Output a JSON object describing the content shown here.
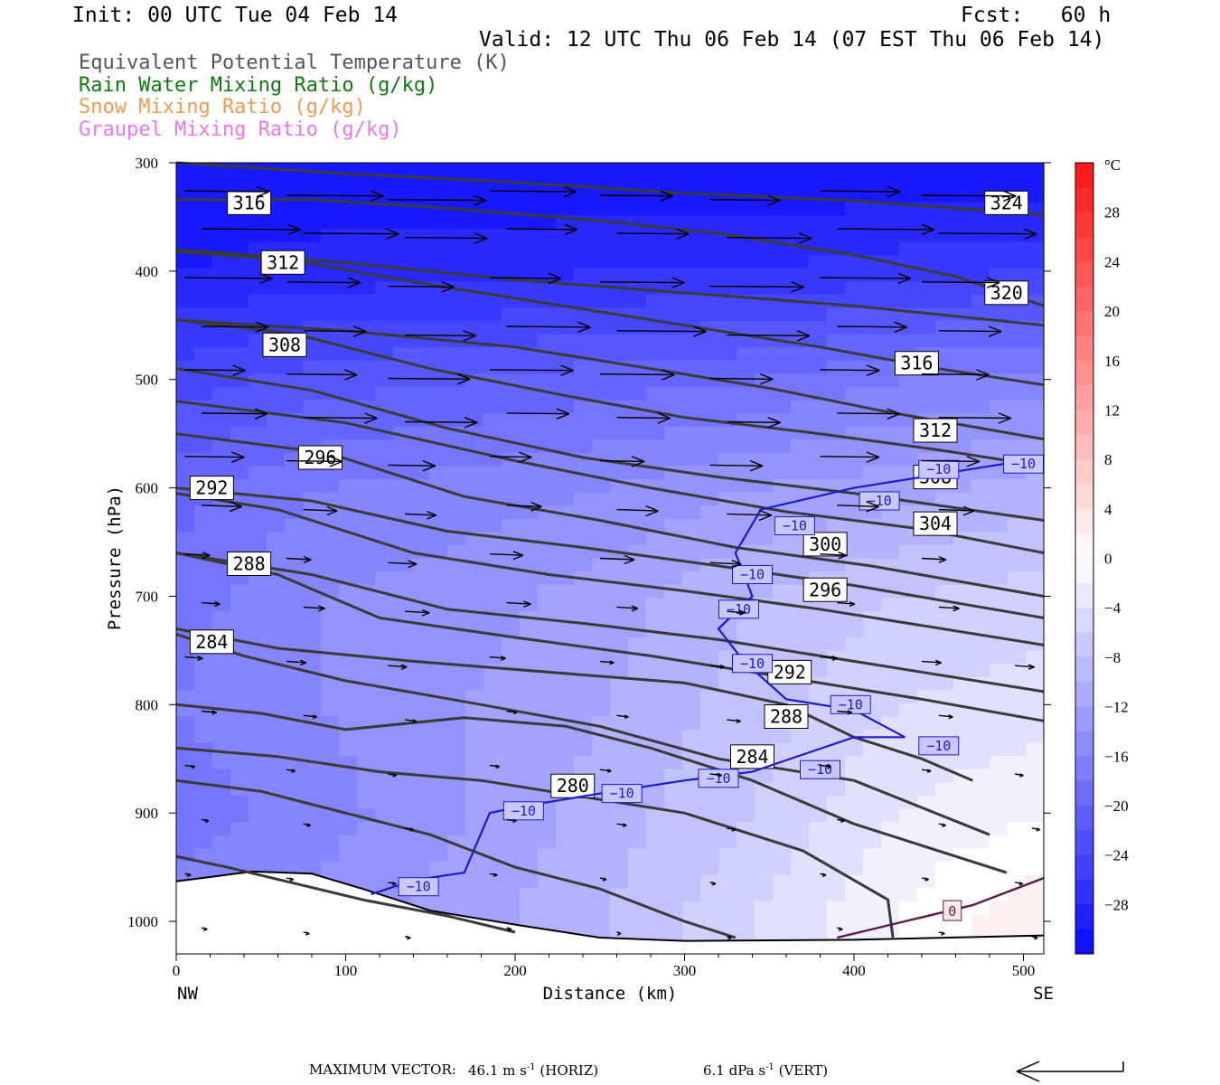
{
  "header": {
    "init": "Init: 00 UTC Tue 04 Feb 14",
    "fcst": "Fcst:   60 h",
    "valid": "Valid: 12 UTC Thu 06 Feb 14 (07 EST Thu 06 Feb 14)"
  },
  "legend": [
    {
      "label": "Equivalent Potential Temperature (K)",
      "color": "#555555"
    },
    {
      "label": "Rain Water Mixing Ratio (g/kg)",
      "color": "#127812"
    },
    {
      "label": "Snow Mixing Ratio (g/kg)",
      "color": "#f09a55"
    },
    {
      "label": "Graupel Mixing Ratio (g/kg)",
      "color": "#ee77ee"
    }
  ],
  "footer": {
    "label": "MAXIMUM VECTOR:",
    "horiz_value": "46.1 m s",
    "horiz_exp": "-1",
    "horiz_tag": "(HORIZ)",
    "vert_value": "6.1 dPa s",
    "vert_exp": "-1",
    "vert_tag": "(VERT)"
  },
  "chart_data": {
    "type": "cross-section",
    "xlabel": "Distance (km)",
    "ylabel": "Pressure (hPa)",
    "x_endpoints": [
      "NW",
      "SE"
    ],
    "xlim": [
      0,
      512
    ],
    "ylim": [
      1030,
      300
    ],
    "xticks": [
      0,
      100,
      200,
      300,
      400,
      500
    ],
    "yticks": [
      300,
      400,
      500,
      600,
      700,
      800,
      900,
      1000
    ],
    "colorbar": {
      "unit": "°C",
      "tick_labels": [
        "28",
        "24",
        "20",
        "16",
        "12",
        "8",
        "4",
        "0",
        "-4",
        "-8",
        "-12",
        "-16",
        "-20",
        "-24",
        "-28"
      ],
      "range": [
        -32,
        32
      ],
      "step": 2
    },
    "terrain_pressure": [
      {
        "x": 0,
        "p": 963
      },
      {
        "x": 25,
        "p": 958
      },
      {
        "x": 45,
        "p": 954
      },
      {
        "x": 80,
        "p": 956
      },
      {
        "x": 110,
        "p": 970
      },
      {
        "x": 150,
        "p": 990
      },
      {
        "x": 200,
        "p": 1003
      },
      {
        "x": 250,
        "p": 1015
      },
      {
        "x": 300,
        "p": 1018
      },
      {
        "x": 400,
        "p": 1017
      },
      {
        "x": 512,
        "p": 1013
      }
    ],
    "temperature_field": [
      {
        "p": 300,
        "t": [
          -31,
          -31,
          -31,
          -31,
          -31,
          -31,
          -31
        ]
      },
      {
        "p": 400,
        "t": [
          -29,
          -28,
          -28,
          -27,
          -27,
          -26,
          -25
        ]
      },
      {
        "p": 500,
        "t": [
          -24,
          -22,
          -21,
          -20,
          -19,
          -17,
          -16
        ]
      },
      {
        "p": 600,
        "t": [
          -20,
          -17,
          -16,
          -15,
          -13,
          -12,
          -10
        ]
      },
      {
        "p": 700,
        "t": [
          -18,
          -15,
          -14,
          -12,
          -9,
          -7,
          -6
        ]
      },
      {
        "p": 800,
        "t": [
          -17,
          -15,
          -13,
          -11,
          -8,
          -5,
          -4
        ]
      },
      {
        "p": 900,
        "t": [
          -18,
          -16,
          -13,
          -10,
          -7,
          -3,
          -1
        ]
      },
      {
        "p": 1000,
        "t": [
          -16,
          -14,
          -12,
          -9,
          -5,
          -1,
          3
        ]
      }
    ],
    "temperature_field_x": [
      0,
      85,
      170,
      255,
      340,
      425,
      512
    ],
    "theta_e_contours": [
      {
        "value": "324",
        "pts": [
          [
            0,
            300
          ],
          [
            100,
            310
          ],
          [
            200,
            318
          ],
          [
            300,
            328
          ],
          [
            400,
            335
          ],
          [
            512,
            348
          ]
        ],
        "label_at": [
          490,
          337
        ]
      },
      {
        "value": "316",
        "pts": [
          [
            0,
            334
          ],
          [
            80,
            334
          ],
          [
            160,
            342
          ],
          [
            240,
            352
          ],
          [
            320,
            365
          ],
          [
            400,
            385
          ],
          [
            460,
            405
          ],
          [
            512,
            432
          ]
        ],
        "label_at": [
          43,
          337
        ]
      },
      {
        "value": "320",
        "pts": [
          [
            0,
            380
          ],
          [
            100,
            392
          ],
          [
            200,
            408
          ],
          [
            300,
            420
          ],
          [
            400,
            432
          ],
          [
            512,
            450
          ]
        ],
        "label_at": [
          490,
          420
        ]
      },
      {
        "value": "312",
        "pts": [
          [
            0,
            382
          ],
          [
            70,
            390
          ],
          [
            140,
            410
          ],
          [
            220,
            430
          ],
          [
            300,
            450
          ],
          [
            380,
            470
          ],
          [
            450,
            490
          ],
          [
            512,
            505
          ]
        ],
        "label_at": [
          63,
          392
        ]
      },
      {
        "value": "316",
        "pts": [
          [
            0,
            445
          ],
          [
            100,
            455
          ],
          [
            200,
            470
          ],
          [
            280,
            490
          ],
          [
            350,
            508
          ],
          [
            420,
            530
          ],
          [
            512,
            555
          ]
        ],
        "label_at": [
          437,
          485
        ]
      },
      {
        "value": "308",
        "pts": [
          [
            0,
            445
          ],
          [
            70,
            458
          ],
          [
            150,
            490
          ],
          [
            230,
            515
          ],
          [
            300,
            535
          ],
          [
            380,
            550
          ],
          [
            450,
            565
          ],
          [
            512,
            580
          ]
        ],
        "label_at": [
          64,
          468
        ]
      },
      {
        "value": "312",
        "pts": [
          [
            0,
            490
          ],
          [
            80,
            510
          ],
          [
            160,
            545
          ],
          [
            240,
            572
          ],
          [
            320,
            590
          ],
          [
            400,
            605
          ],
          [
            512,
            630
          ]
        ],
        "label_at": [
          448,
          547
        ]
      },
      {
        "value": "308",
        "pts": [
          [
            0,
            520
          ],
          [
            100,
            540
          ],
          [
            200,
            575
          ],
          [
            280,
            600
          ],
          [
            360,
            622
          ],
          [
            440,
            638
          ],
          [
            512,
            660
          ]
        ],
        "label_at": [
          448,
          590
        ]
      },
      {
        "value": "296",
        "pts": [
          [
            0,
            550
          ],
          [
            90,
            568
          ],
          [
            170,
            608
          ],
          [
            250,
            630
          ],
          [
            330,
            655
          ],
          [
            410,
            672
          ],
          [
            512,
            700
          ]
        ],
        "label_at": [
          85,
          572
        ]
      },
      {
        "value": "304",
        "pts": [
          [
            0,
            600
          ],
          [
            80,
            612
          ],
          [
            160,
            640
          ],
          [
            240,
            655
          ],
          [
            320,
            672
          ],
          [
            400,
            690
          ],
          [
            512,
            720
          ]
        ],
        "label_at": [
          448,
          633
        ]
      },
      {
        "value": "292",
        "pts": [
          [
            0,
            605
          ],
          [
            60,
            620
          ],
          [
            140,
            660
          ],
          [
            220,
            680
          ],
          [
            300,
            695
          ],
          [
            380,
            712
          ],
          [
            512,
            745
          ]
        ],
        "label_at": [
          21,
          600
        ]
      },
      {
        "value": "300",
        "pts": [
          [
            0,
            660
          ],
          [
            80,
            680
          ],
          [
            160,
            712
          ],
          [
            240,
            725
          ],
          [
            320,
            740
          ],
          [
            400,
            760
          ],
          [
            512,
            788
          ]
        ],
        "label_at": [
          383,
          652
        ]
      },
      {
        "value": "288",
        "pts": [
          [
            0,
            660
          ],
          [
            60,
            680
          ],
          [
            120,
            720
          ],
          [
            200,
            738
          ],
          [
            280,
            755
          ],
          [
            360,
            775
          ],
          [
            440,
            795
          ],
          [
            512,
            815
          ]
        ],
        "label_at": [
          43,
          670
        ]
      },
      {
        "value": "296",
        "pts": [
          [
            0,
            730
          ],
          [
            60,
            748
          ],
          [
            140,
            760
          ],
          [
            220,
            770
          ],
          [
            300,
            780
          ],
          [
            360,
            800
          ],
          [
            400,
            830
          ],
          [
            440,
            850
          ],
          [
            470,
            870
          ]
        ],
        "label_at": [
          383,
          694
        ]
      },
      {
        "value": "284",
        "pts": [
          [
            0,
            735
          ],
          [
            40,
            755
          ],
          [
            100,
            778
          ],
          [
            180,
            800
          ],
          [
            250,
            820
          ],
          [
            320,
            850
          ],
          [
            400,
            870
          ],
          [
            480,
            920
          ]
        ],
        "label_at": [
          21,
          742
        ]
      },
      {
        "value": "292",
        "pts": [
          [
            0,
            800
          ],
          [
            50,
            808
          ],
          [
            100,
            823
          ],
          [
            170,
            812
          ],
          [
            230,
            820
          ],
          [
            280,
            840
          ],
          [
            340,
            870
          ],
          [
            400,
            910
          ],
          [
            490,
            955
          ]
        ],
        "label_at": [
          362,
          770
        ]
      },
      {
        "value": "288",
        "pts": [
          [
            0,
            840
          ],
          [
            60,
            848
          ],
          [
            120,
            862
          ],
          [
            180,
            870
          ],
          [
            240,
            885
          ],
          [
            300,
            900
          ],
          [
            370,
            935
          ],
          [
            420,
            980
          ],
          [
            423,
            1015
          ]
        ],
        "label_at": [
          360,
          811
        ]
      },
      {
        "value": "284",
        "pts": [
          [
            0,
            870
          ],
          [
            50,
            880
          ],
          [
            100,
            900
          ],
          [
            150,
            920
          ],
          [
            200,
            950
          ],
          [
            250,
            970
          ],
          [
            300,
            1000
          ],
          [
            330,
            1015
          ]
        ],
        "label_at": [
          340,
          848
        ]
      },
      {
        "value": "280",
        "pts": [
          [
            0,
            940
          ],
          [
            30,
            950
          ],
          [
            70,
            965
          ],
          [
            110,
            980
          ],
          [
            160,
            995
          ],
          [
            200,
            1010
          ]
        ],
        "label_at": [
          234,
          875
        ]
      }
    ],
    "isotherm_minus10": [
      [
        115,
        975
      ],
      [
        140,
        962
      ],
      [
        170,
        955
      ],
      [
        185,
        900
      ],
      [
        200,
        895
      ],
      [
        250,
        882
      ],
      [
        300,
        870
      ],
      [
        340,
        862
      ],
      [
        400,
        830
      ],
      [
        430,
        830
      ],
      [
        400,
        805
      ],
      [
        360,
        795
      ],
      [
        335,
        760
      ],
      [
        320,
        730
      ],
      [
        340,
        700
      ],
      [
        330,
        660
      ],
      [
        345,
        620
      ],
      [
        400,
        600
      ],
      [
        460,
        585
      ],
      [
        512,
        572
      ]
    ],
    "isotherm_minus10_labels": [
      [
        143,
        968
      ],
      [
        205,
        898
      ],
      [
        263,
        882
      ],
      [
        320,
        868
      ],
      [
        380,
        860
      ],
      [
        450,
        838
      ],
      [
        398,
        800
      ],
      [
        340,
        762
      ],
      [
        332,
        712
      ],
      [
        340,
        680
      ],
      [
        365,
        635
      ],
      [
        415,
        612
      ],
      [
        450,
        583
      ],
      [
        500,
        578
      ]
    ],
    "isotherm_zero": [
      [
        390,
        1015
      ],
      [
        430,
        1000
      ],
      [
        470,
        985
      ],
      [
        512,
        960
      ]
    ],
    "isotherm_zero_label": [
      458,
      990
    ],
    "wind_vectors_rows": [
      {
        "p": 330,
        "len": 1.0
      },
      {
        "p": 365,
        "len": 1.0
      },
      {
        "p": 410,
        "len": 0.95
      },
      {
        "p": 455,
        "len": 0.9
      },
      {
        "p": 495,
        "len": 0.85
      },
      {
        "p": 535,
        "len": 0.75
      },
      {
        "p": 575,
        "len": 0.6
      },
      {
        "p": 620,
        "len": 0.45
      },
      {
        "p": 665,
        "len": 0.35
      },
      {
        "p": 710,
        "len": 0.25
      },
      {
        "p": 760,
        "len": 0.2
      },
      {
        "p": 810,
        "len": 0.15
      },
      {
        "p": 860,
        "len": 0.12
      },
      {
        "p": 910,
        "len": 0.1
      },
      {
        "p": 960,
        "len": 0.08
      },
      {
        "p": 1010,
        "len": 0.06
      }
    ]
  }
}
